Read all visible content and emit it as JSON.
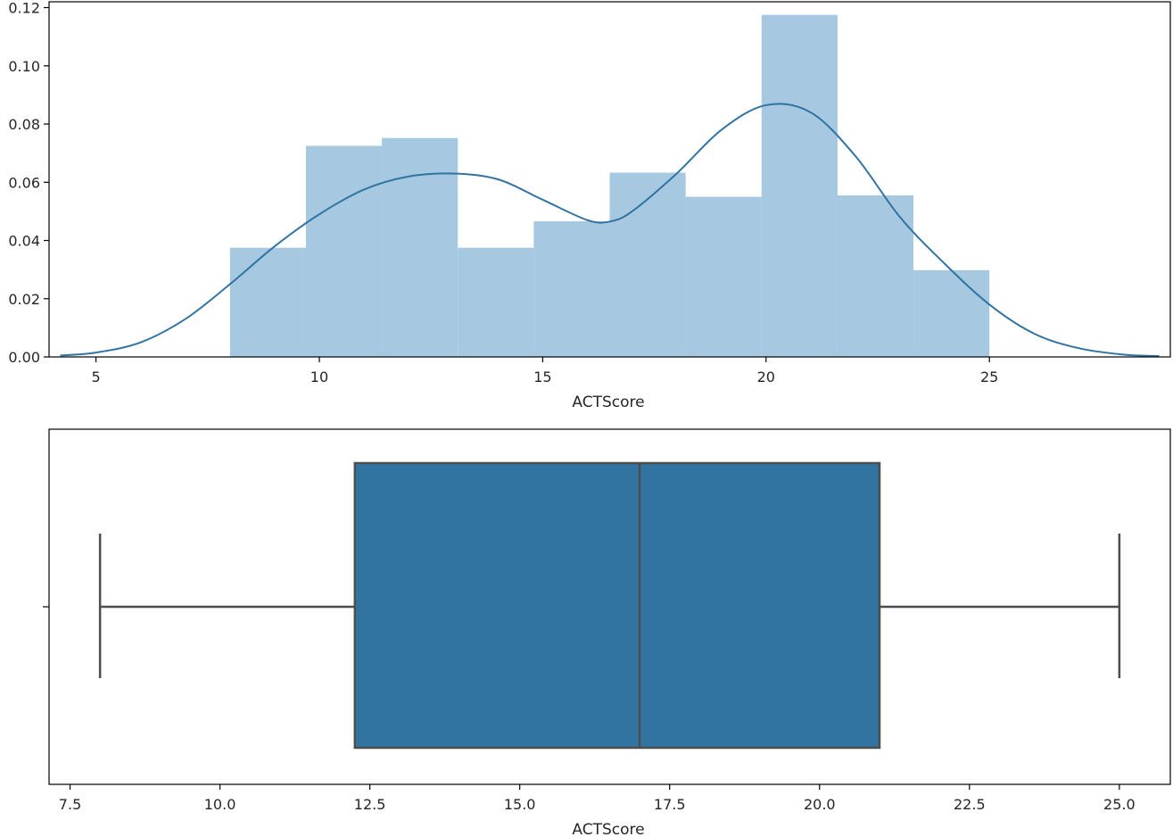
{
  "chart_data": [
    {
      "type": "histogram",
      "xlabel": "ACTScore",
      "ylabel": "",
      "xlim": [
        3.95,
        29.05
      ],
      "ylim": [
        0,
        0.122
      ],
      "xticks": [
        5,
        10,
        15,
        20,
        25
      ],
      "yticks": [
        0.0,
        0.02,
        0.04,
        0.06,
        0.08,
        0.1,
        0.12
      ],
      "ytick_labels": [
        "0.00",
        "0.02",
        "0.04",
        "0.06",
        "0.08",
        "0.10",
        "0.12"
      ],
      "bar_color": "#a6c8e0",
      "bins": [
        {
          "x0": 8.0,
          "x1": 9.7,
          "value": 0.0375
        },
        {
          "x0": 9.7,
          "x1": 11.4,
          "value": 0.0725
        },
        {
          "x0": 11.4,
          "x1": 13.1,
          "value": 0.0752
        },
        {
          "x0": 13.1,
          "x1": 14.8,
          "value": 0.0375
        },
        {
          "x0": 14.8,
          "x1": 16.5,
          "value": 0.0466
        },
        {
          "x0": 16.5,
          "x1": 18.2,
          "value": 0.0633
        },
        {
          "x0": 18.2,
          "x1": 19.9,
          "value": 0.055
        },
        {
          "x0": 19.9,
          "x1": 21.6,
          "value": 0.1175
        },
        {
          "x0": 21.6,
          "x1": 23.3,
          "value": 0.0555
        },
        {
          "x0": 23.3,
          "x1": 25.0,
          "value": 0.0298
        }
      ],
      "kde": {
        "color": "#3274a1",
        "x": [
          4.2,
          5,
          6,
          7,
          8,
          9,
          10,
          11,
          12,
          13,
          14,
          15,
          16,
          16.5,
          17,
          18,
          19,
          20,
          21,
          22,
          23,
          24,
          25,
          26,
          27,
          28,
          28.8
        ],
        "y": [
          0.0005,
          0.0015,
          0.005,
          0.013,
          0.025,
          0.038,
          0.049,
          0.0575,
          0.062,
          0.063,
          0.061,
          0.054,
          0.047,
          0.0465,
          0.05,
          0.063,
          0.078,
          0.0865,
          0.084,
          0.069,
          0.048,
          0.032,
          0.018,
          0.008,
          0.003,
          0.0008,
          0.0003
        ]
      }
    },
    {
      "type": "boxplot",
      "xlabel": "ACTScore",
      "xlim": [
        7.15,
        25.85
      ],
      "xticks": [
        7.5,
        10.0,
        12.5,
        15.0,
        17.5,
        20.0,
        22.5,
        25.0
      ],
      "xtick_labels": [
        "7.5",
        "10.0",
        "12.5",
        "15.0",
        "17.5",
        "20.0",
        "22.5",
        "25.0"
      ],
      "box_color": "#3274a1",
      "line_color": "#4d4d4d",
      "stats": {
        "min": 8.0,
        "q1": 12.25,
        "median": 17.0,
        "q3": 21.0,
        "max": 25.0
      }
    }
  ]
}
